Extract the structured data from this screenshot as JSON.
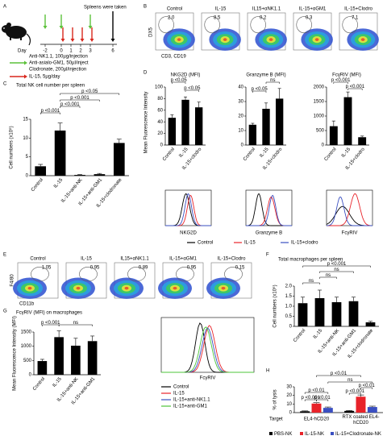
{
  "panels": [
    "A",
    "B",
    "C",
    "D",
    "E",
    "F",
    "G",
    "H"
  ],
  "timeline": {
    "day_label": "Day",
    "days": [
      "-2",
      "0",
      "1",
      "2",
      "3",
      "6"
    ],
    "note": "Spleens were taken",
    "legend": [
      {
        "color": "#5cc13a",
        "lines": [
          "Anti-NK1.1, 100µg/injection",
          "Anti-asialo-GM1, 50µl/inject",
          "Clodronate, 200µl/injection"
        ]
      },
      {
        "color": "#d9261c",
        "lines": [
          "IL-15, 5µg/day"
        ]
      }
    ]
  },
  "flow_B": {
    "x_label": "CD3, CD19",
    "y_label": "DX5",
    "plots": [
      {
        "title": "Control",
        "gate": "2.0"
      },
      {
        "title": "IL-15",
        "gate": "8.5"
      },
      {
        "title": "IL15+αNK1.1",
        "gate": "0.2"
      },
      {
        "title": "IL-15+αGM1",
        "gate": "0.3"
      },
      {
        "title": "IL-15+Clodro",
        "gate": "7.1"
      }
    ]
  },
  "flow_E": {
    "x_label": "CD11b",
    "y_label": "F4/80",
    "plots": [
      {
        "title": "Control",
        "gate": "1.05"
      },
      {
        "title": "IL-15",
        "gate": "0.95"
      },
      {
        "title": "IL15+αNK1.1",
        "gate": "0.89"
      },
      {
        "title": "IL-15+αGM1",
        "gate": "0.95"
      },
      {
        "title": "IL-15+Clodro",
        "gate": "0.15"
      }
    ]
  },
  "histograms_D": {
    "x_labels": [
      "NKG2D",
      "Granzyme B",
      "FcγRIV"
    ],
    "legend": [
      {
        "name": "Control",
        "color": "#000000"
      },
      {
        "name": "IL-15",
        "color": "#e8232a"
      },
      {
        "name": "IL-15+clodro",
        "color": "#3a4fc1"
      }
    ]
  },
  "histogram_G": {
    "x_label": "FcγRIV",
    "legend": [
      {
        "name": "Control",
        "color": "#000000"
      },
      {
        "name": "IL-15",
        "color": "#e8232a"
      },
      {
        "name": "IL-15+anti-NK1.1",
        "color": "#3a4fc1"
      },
      {
        "name": "IL-15+anti-GM1",
        "color": "#4cc43a"
      }
    ]
  },
  "chart_data": [
    {
      "type": "bar",
      "title": "Total NK cell number per spleen",
      "y_label": "Cell numbers (x10⁶)",
      "categories": [
        "Control",
        "IL-15",
        "IL-15+anti-NK",
        "IL-15+anti-GM1",
        "IL-15+clodronate"
      ],
      "values": [
        2.5,
        12,
        0.2,
        0.4,
        8.7
      ],
      "errors": [
        0.5,
        2,
        0.1,
        0.2,
        1
      ],
      "color": "#000000",
      "ylim": [
        0,
        15
      ],
      "yticks": [
        0,
        5,
        10,
        15
      ],
      "annotations": [
        "p <0.001",
        "p <0.001",
        "p <0.001",
        "p <0.05"
      ]
    },
    {
      "type": "bar",
      "title": "NKG2D (MFI)",
      "y_label": "Mean Fluorescence Intensity",
      "categories": [
        "Control",
        "IL-15",
        "IL-15+clodro"
      ],
      "values": [
        47,
        78,
        65
      ],
      "errors": [
        5,
        5,
        9
      ],
      "color": "#000000",
      "ylim": [
        0,
        100
      ],
      "yticks": [
        0,
        20,
        40,
        60,
        80,
        100
      ],
      "annotations": [
        "p <0.05",
        "p <0.05"
      ]
    },
    {
      "type": "bar",
      "title": "Granzyme B (MFI)",
      "categories": [
        "Control",
        "IL-15",
        "IL-15+clodro"
      ],
      "values": [
        14,
        25,
        32
      ],
      "errors": [
        1,
        4,
        7
      ],
      "color": "#000000",
      "ylim": [
        0,
        40
      ],
      "yticks": [
        0,
        10,
        20,
        30,
        40
      ],
      "annotations": [
        "p <0.05",
        "ns"
      ]
    },
    {
      "type": "bar",
      "title": "FcγRIV (MFI)",
      "categories": [
        "Control",
        "IL-15",
        "IL-15+clodro"
      ],
      "values": [
        650,
        1650,
        270
      ],
      "errors": [
        180,
        180,
        40
      ],
      "color": "#000000",
      "ylim": [
        0,
        2000
      ],
      "yticks": [
        0,
        500,
        1000,
        1500,
        2000
      ],
      "annotations": [
        "p <0.001",
        "p <0.001"
      ]
    },
    {
      "type": "bar",
      "title": "Total macrophages per spleen",
      "y_label": "Cell numbers (x10⁶)",
      "categories": [
        "Control",
        "IL-15",
        "IL-15+anti-NK",
        "IL-15+anti-GM1",
        "IL-15+clodronate"
      ],
      "values": [
        1.15,
        1.4,
        1.2,
        1.25,
        0.2
      ],
      "errors": [
        0.3,
        0.4,
        0.25,
        0.2,
        0.05
      ],
      "color": "#000000",
      "ylim": [
        0,
        2
      ],
      "yticks": [
        0,
        0.5,
        {
          "value": 1,
          "label": "1.0"
        },
        1.5,
        {
          "value": 2,
          "label": "2.0"
        }
      ],
      "annotations": [
        "ns",
        "ns",
        "ns",
        "p <0.001"
      ]
    },
    {
      "type": "bar",
      "title": "FcγRIV (MFI) on macrophages",
      "y_label": "Mean Fluorescence Intensity (MFI)",
      "categories": [
        "Control",
        "IL-15",
        "IL-15+anti-NK",
        "IL-15+anti-GM1"
      ],
      "values": [
        480,
        1320,
        1020,
        1180
      ],
      "errors": [
        60,
        220,
        260,
        180
      ],
      "color": "#000000",
      "ylim": [
        0,
        1500
      ],
      "yticks": [
        0,
        500,
        1000,
        1500
      ],
      "annotations": [
        "p <0.001",
        "ns"
      ]
    },
    {
      "type": "grouped-bar",
      "y_label": "% of lysis",
      "category_title": "Target",
      "categories": [
        "EL4-hCD20",
        "RTX coated EL4-hCD20"
      ],
      "series": [
        {
          "name": "PBS-NK",
          "color": "#000000",
          "values": [
            1.5,
            2
          ],
          "errors": [
            0.5,
            0.5
          ]
        },
        {
          "name": "IL-15-NK",
          "color": "#e8232a",
          "values": [
            10.5,
            18.5
          ],
          "errors": [
            1,
            2
          ]
        },
        {
          "name": "IL-15+Clodronate-NK",
          "color": "#3a4fc1",
          "values": [
            5.5,
            6.5
          ],
          "errors": [
            1,
            1
          ]
        }
      ],
      "ylim": [
        0,
        30
      ],
      "yticks": [
        0,
        10,
        20,
        30
      ],
      "annotations": [
        "p <0.01",
        "ns",
        "p <0.01",
        "p <0.001",
        "p <0.01",
        "p <0.001",
        "p <0.01"
      ]
    }
  ]
}
